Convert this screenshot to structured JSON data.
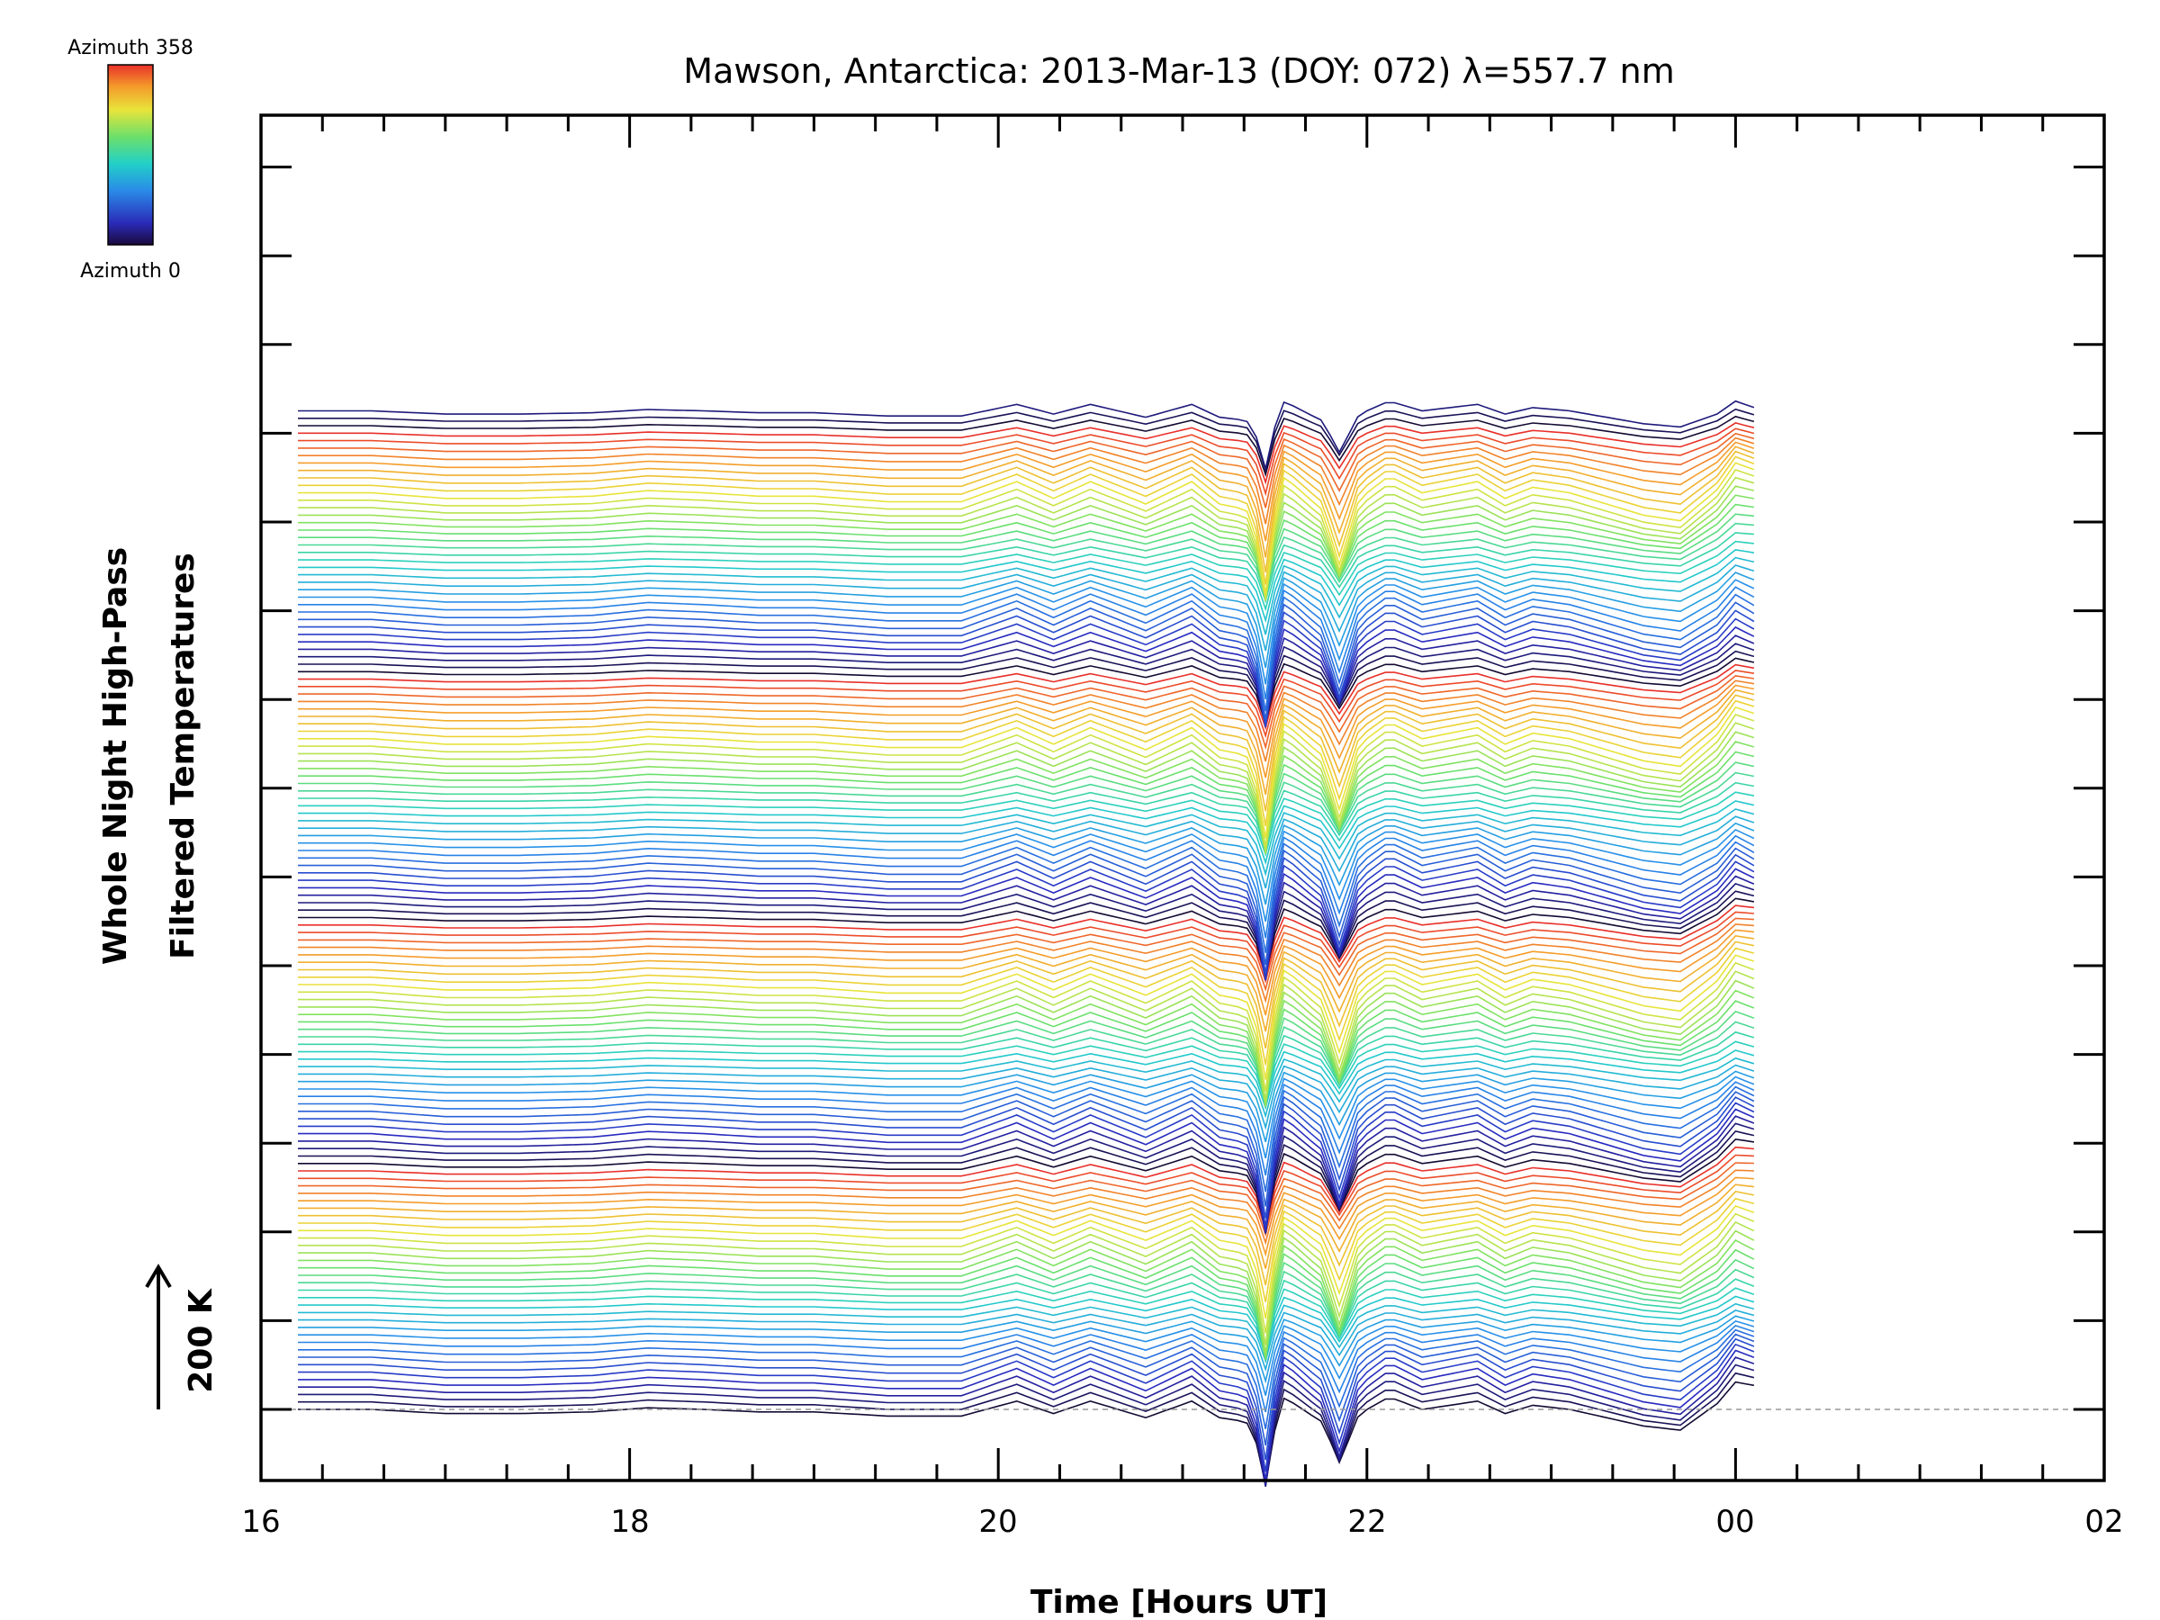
{
  "chart_data": {
    "type": "line",
    "title": "Mawson, Antarctica: 2013-Mar-13 (DOY: 072) λ=557.7 nm",
    "xlabel": "Time [Hours UT]",
    "ylabel_line1": "Whole Night High-Pass",
    "ylabel_line2": "Filtered Temperatures",
    "scale_label": "200 K",
    "x_ticks": [
      "16",
      "18",
      "20",
      "22",
      "00",
      "02"
    ],
    "x_tick_values": [
      16,
      18,
      20,
      22,
      24,
      26
    ],
    "xlim": [
      16,
      26
    ],
    "colorbar": {
      "top_label": "Azimuth 358",
      "bottom_label": "Azimuth 0",
      "min": 0,
      "max": 358
    },
    "n_series": 135,
    "series_offset_k": 9,
    "series_azimuth_cycle": 33,
    "base_x": [
      16.2,
      16.6,
      17.0,
      17.4,
      17.8,
      18.1,
      18.4,
      18.7,
      19.0,
      19.4,
      19.8,
      20.1,
      20.3,
      20.5,
      20.8,
      21.05,
      21.2,
      21.35,
      21.45,
      21.55,
      21.72,
      21.88,
      22.0,
      22.12,
      22.3,
      22.45,
      22.6,
      22.75,
      22.9,
      23.1,
      23.3,
      23.5,
      23.7,
      23.9,
      24.0,
      24.1
    ],
    "base_y": [
      0,
      0,
      -5,
      -5,
      -3,
      2,
      0,
      -3,
      -3,
      -8,
      -8,
      10,
      -5,
      10,
      -10,
      10,
      -10,
      -15,
      0,
      15,
      -10,
      -15,
      0,
      15,
      0,
      5,
      10,
      -5,
      5,
      0,
      -10,
      -20,
      -25,
      -5,
      15,
      5
    ],
    "dips": [
      {
        "x": 21.45,
        "sigma": 0.05,
        "depth": -90
      },
      {
        "x": 21.85,
        "sigma": 0.06,
        "depth": -50
      }
    ]
  }
}
